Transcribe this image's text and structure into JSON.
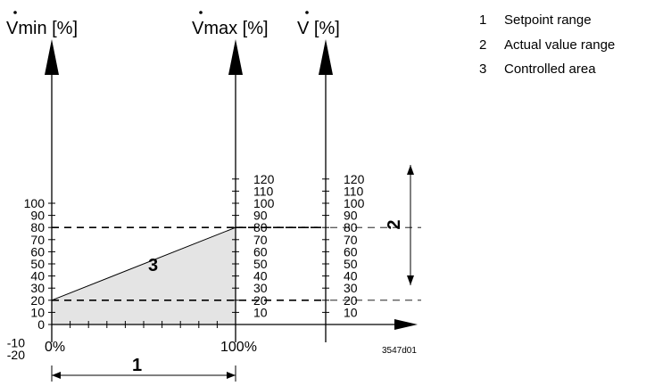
{
  "axes": {
    "vmin": {
      "label": "Vmin [%]",
      "ticks": [
        "-20",
        "-10",
        "0",
        "10",
        "20",
        "30",
        "40",
        "50",
        "60",
        "70",
        "80",
        "90",
        "100"
      ]
    },
    "vmax": {
      "label": "Vmax [%]",
      "ticks": [
        "10",
        "20",
        "30",
        "40",
        "50",
        "60",
        "70",
        "80",
        "90",
        "100",
        "110",
        "120"
      ]
    },
    "v": {
      "label": "V [%]",
      "ticks": [
        "10",
        "20",
        "30",
        "40",
        "50",
        "60",
        "70",
        "80",
        "90",
        "100",
        "110",
        "120"
      ]
    },
    "x": {
      "start_label": "0%",
      "end_label": "100%"
    }
  },
  "markers": {
    "setpoint_range": "1",
    "actual_value_range": "2",
    "controlled_area": "3"
  },
  "legend": [
    {
      "num": "1",
      "text": "Setpoint range"
    },
    {
      "num": "2",
      "text": "Actual value range"
    },
    {
      "num": "3",
      "text": "Controlled area"
    }
  ],
  "figure_id": "3547d01",
  "diagram": {
    "vmin_at_start": 20,
    "vmax_at_end": 80,
    "actual_range": [
      20,
      80
    ]
  }
}
